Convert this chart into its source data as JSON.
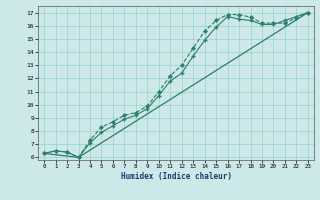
{
  "title": "",
  "xlabel": "Humidex (Indice chaleur)",
  "ylabel": "",
  "background_color": "#cce8e8",
  "line_color": "#2e7d6e",
  "xlim": [
    -0.5,
    23.5
  ],
  "ylim": [
    5.8,
    17.5
  ],
  "xticks": [
    0,
    1,
    2,
    3,
    4,
    5,
    6,
    7,
    8,
    9,
    10,
    11,
    12,
    13,
    14,
    15,
    16,
    17,
    18,
    19,
    20,
    21,
    22,
    23
  ],
  "yticks": [
    6,
    7,
    8,
    9,
    10,
    11,
    12,
    13,
    14,
    15,
    16,
    17
  ],
  "series1_x": [
    0,
    1,
    2,
    3,
    4,
    5,
    6,
    7,
    8,
    9,
    10,
    11,
    12,
    13,
    14,
    15,
    16,
    17,
    18,
    19,
    20,
    21,
    22,
    23
  ],
  "series1_y": [
    6.3,
    6.5,
    6.4,
    6.0,
    7.3,
    8.3,
    8.7,
    9.2,
    9.4,
    9.9,
    11.0,
    12.2,
    13.0,
    14.3,
    15.6,
    16.4,
    16.85,
    16.85,
    16.65,
    16.2,
    16.2,
    16.2,
    16.6,
    17.0
  ],
  "series2_x": [
    0,
    1,
    2,
    3,
    4,
    5,
    6,
    7,
    8,
    9,
    10,
    11,
    12,
    13,
    14,
    15,
    16,
    17,
    18,
    19,
    20,
    21,
    22,
    23
  ],
  "series2_y": [
    6.3,
    6.5,
    6.4,
    6.0,
    7.1,
    7.9,
    8.4,
    8.9,
    9.2,
    9.7,
    10.7,
    11.8,
    12.4,
    13.7,
    14.9,
    15.9,
    16.7,
    16.5,
    16.4,
    16.1,
    16.1,
    16.4,
    16.7,
    17.0
  ],
  "series3_x": [
    0,
    3,
    23
  ],
  "series3_y": [
    6.3,
    6.0,
    17.0
  ]
}
